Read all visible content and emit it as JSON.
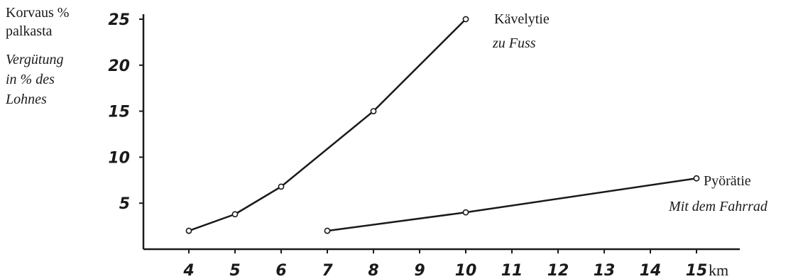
{
  "chart_data": {
    "type": "line",
    "ylabel_fi_1": "Korvaus %",
    "ylabel_fi_2": "palkasta",
    "ylabel_de_1": "Vergütung",
    "ylabel_de_2": "in % des",
    "ylabel_de_3": "Lohnes",
    "xunit": "km",
    "xlim": [
      3,
      16
    ],
    "ylim": [
      0,
      25
    ],
    "x_ticks": [
      4,
      5,
      6,
      7,
      8,
      9,
      10,
      11,
      12,
      13,
      14,
      15
    ],
    "y_ticks": [
      5,
      10,
      15,
      20,
      25
    ],
    "series": [
      {
        "name_fi": "Kävelytie",
        "name_de": "zu Fuss",
        "x": [
          4,
          5,
          6,
          8,
          10
        ],
        "y": [
          2,
          3.8,
          6.8,
          15,
          25
        ]
      },
      {
        "name_fi": "Pyörätie",
        "name_de": "Mit dem Fahrrad",
        "x": [
          7,
          10,
          15
        ],
        "y": [
          2,
          4,
          7.7
        ]
      }
    ],
    "colors": {
      "ink": "#1a1a1a",
      "background": "#ffffff"
    }
  }
}
